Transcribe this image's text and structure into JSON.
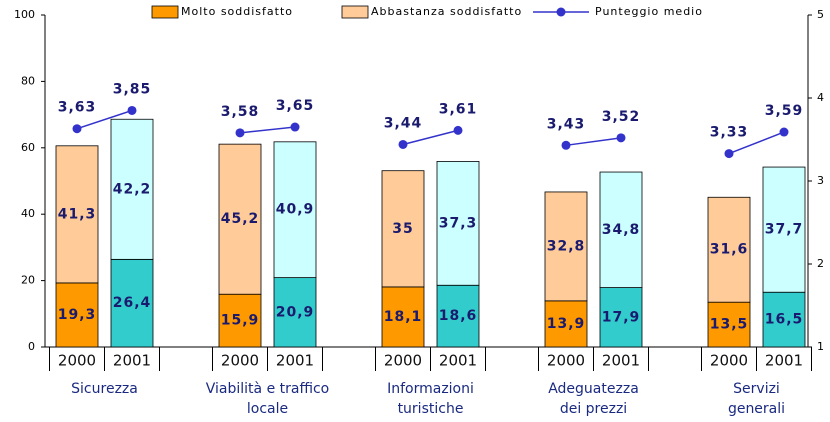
{
  "chart_data": {
    "type": "bar",
    "groups": [
      [
        "Sicurezza"
      ],
      [
        "Viabilità e traffico",
        "locale"
      ],
      [
        "Informazioni",
        "turistiche"
      ],
      [
        "Adeguatezza",
        "dei prezzi"
      ],
      [
        "Servizi",
        "generali"
      ]
    ],
    "categories": [
      "2000",
      "2001",
      "2000",
      "2001",
      "2000",
      "2001",
      "2000",
      "2001",
      "2000",
      "2001"
    ],
    "series": [
      {
        "name": "Molto soddisfatto",
        "color": "#FF9900",
        "colors": [
          "#FF9900",
          "#33CCCC"
        ],
        "values": [
          19.3,
          26.4,
          15.9,
          20.9,
          18.1,
          18.6,
          13.9,
          17.9,
          13.5,
          16.5
        ],
        "value_labels": [
          "19,3",
          "26,4",
          "15,9",
          "20,9",
          "18,1",
          "18,6",
          "13,9",
          "17,9",
          "13,5",
          "16,5"
        ]
      },
      {
        "name": "Abbastanza soddisfatto",
        "color": "#FFCC99",
        "colors": [
          "#FFCC99",
          "#CCFFFF"
        ],
        "values": [
          41.3,
          42.2,
          45.2,
          40.9,
          35,
          37.3,
          32.8,
          34.8,
          31.6,
          37.7
        ],
        "value_labels": [
          "41,3",
          "42,2",
          "45,2",
          "40,9",
          "35",
          "37,3",
          "32,8",
          "34,8",
          "31,6",
          "37,7"
        ]
      },
      {
        "name": "Punteggio medio",
        "color": "#3333CC",
        "type": "line",
        "axis": "y2",
        "values": [
          3.63,
          3.85,
          3.58,
          3.65,
          3.44,
          3.61,
          3.43,
          3.52,
          3.33,
          3.59
        ],
        "value_labels": [
          "3,63",
          "3,85",
          "3,58",
          "3,65",
          "3,44",
          "3,61",
          "3,43",
          "3,52",
          "3,33",
          "3,59"
        ]
      }
    ],
    "stacked": true,
    "ylim": [
      0,
      100
    ],
    "yticks": [
      0,
      20,
      40,
      60,
      80,
      100
    ],
    "y2lim": [
      1,
      5
    ],
    "y2ticks": [
      1,
      2,
      3,
      4,
      5
    ],
    "legend": "top"
  }
}
